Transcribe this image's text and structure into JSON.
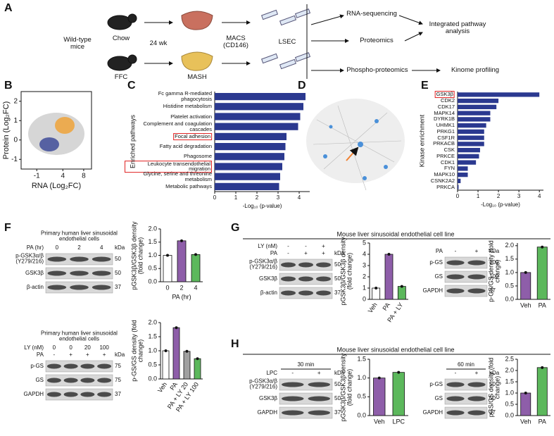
{
  "figure": {
    "panel_letters": [
      "A",
      "B",
      "C",
      "D",
      "E",
      "F",
      "G",
      "H"
    ],
    "schematic": {
      "mice": "Wild-type mice",
      "diet_1": "Chow",
      "diet_2": "FFC",
      "duration": "24 wk",
      "disease": "MASH",
      "isolation": "MACS (CD146)",
      "cells": "LSEC",
      "omics": [
        "RNA-sequencing",
        "Proteomics",
        "Phospho-proteomics"
      ],
      "outputs": [
        "Integrated pathway analysis",
        "Kinome profiling"
      ]
    },
    "headers": [
      "Mouse liver sinusoidal endothelial cell line",
      "Mouse liver sinusoidal endothelial cell line"
    ],
    "blots": [
      {
        "title": "Primary human liver sinusoidal endothelial cells",
        "conditions": [
          {
            "label": "PA (hr)",
            "values": [
              "0",
              "2",
              "4"
            ]
          }
        ],
        "kda": "kDa",
        "rows": [
          {
            "label": "p-GSK3α/β (Y279/216)",
            "kda": 50
          },
          {
            "label": "GSK3β",
            "kda": 50
          },
          {
            "label": "β-actin",
            "kda": 37
          }
        ]
      },
      {
        "title": "Primary human liver sinusoidal endothelial cells",
        "conditions": [
          {
            "label": "LY (nM)",
            "values": [
              "0",
              "0",
              "20",
              "100"
            ]
          },
          {
            "label": "PA",
            "values": [
              "-",
              "+",
              "+",
              "+"
            ]
          }
        ],
        "kda": "kDa",
        "rows": [
          {
            "label": "p-GS",
            "kda": 75
          },
          {
            "label": "GS",
            "kda": 75
          },
          {
            "label": "GAPDH",
            "kda": 37
          }
        ]
      },
      {
        "conditions": [
          {
            "label": "LY (nM)",
            "values": [
              "-",
              "-",
              "+"
            ]
          },
          {
            "label": "PA",
            "values": [
              "-",
              "+",
              "+"
            ]
          }
        ],
        "kda": "kDa",
        "rows": [
          {
            "label": "p-GSK3α/β (Y279/216)",
            "kda": 50
          },
          {
            "label": "GSK3β",
            "kda": 50
          },
          {
            "label": "β-actin",
            "kda": 37
          }
        ]
      },
      {
        "conditions": [
          {
            "label": "PA",
            "values": [
              "-",
              "+"
            ]
          }
        ],
        "kda": "kDa",
        "rows": [
          {
            "label": "p-GS",
            "kda": 100
          },
          {
            "label": "GS",
            "kda": 100
          },
          {
            "label": "GAPDH",
            "kda": 37
          }
        ]
      },
      {
        "time": "30 min",
        "conditions": [
          {
            "label": "LPC",
            "values": [
              "-",
              "+"
            ]
          }
        ],
        "kda": "kDa",
        "rows": [
          {
            "label": "p-GSK3α/β (Y279/216)",
            "kda": 50
          },
          {
            "label": "GSK3β",
            "kda": 50
          },
          {
            "label": "GAPDH",
            "kda": 37
          }
        ]
      },
      {
        "time": "60 min",
        "conditions": [
          {
            "values": [
              "-",
              "+"
            ]
          }
        ],
        "kda": "kDa",
        "rows": [
          {
            "label": "p-GS",
            "kda": 50
          },
          {
            "label": "GS",
            "kda": 50
          },
          {
            "label": "GAPDH",
            "kda": 37
          }
        ]
      }
    ]
  },
  "chart_data": [
    {
      "type": "scatter",
      "x_label": "RNA (Log₂FC)",
      "y_label": "Protein (Log₂FC)",
      "xlim": [
        -4,
        9.5
      ],
      "ylim": [
        -1.5,
        2.5
      ],
      "xticks": [
        -1,
        4,
        8
      ],
      "yticks": [
        -1,
        0,
        1,
        2
      ]
    },
    {
      "type": "hbar",
      "categories": [
        "Fc gamma R-mediated phagocytosis",
        "Histidine metabolism",
        "Platelet activation",
        "Complement and coagulation cascades",
        "Focal adhesion",
        "Fatty acid degradation",
        "Phagosome",
        "Leukocyte transendothelial migration",
        "Glycine, serine and threonine metabolism",
        "Metabolic pathways"
      ],
      "values": [
        4.3,
        4.2,
        4.05,
        3.95,
        3.4,
        3.35,
        3.3,
        3.2,
        3.1,
        3.05
      ],
      "color": "#2b3990",
      "boxed": [
        false,
        false,
        false,
        false,
        true,
        false,
        false,
        true,
        false,
        false
      ],
      "x_label": "-Log₁₀ (p-value)",
      "y_label": "Enriched pathways",
      "xlim": [
        0,
        4.5
      ],
      "xticks": [
        0,
        1,
        2,
        3,
        4
      ]
    },
    {
      "type": "hbar",
      "categories": [
        "GSK3β",
        "CDK2",
        "CDK17",
        "MAPK14",
        "DYRK1B",
        "UHMK1",
        "PRKG1",
        "CSF1R",
        "PRKACB",
        "CSK",
        "PRKCE",
        "CDK1",
        "FYN",
        "MAPK10",
        "CSNK2A2",
        "PRKCA"
      ],
      "values": [
        4.0,
        2.0,
        1.9,
        1.6,
        1.6,
        1.4,
        1.3,
        1.3,
        1.3,
        1.1,
        1.05,
        0.9,
        0.5,
        0.5,
        0.15,
        0.05
      ],
      "color": "#2b3990",
      "boxed": [
        true,
        false,
        false,
        false,
        false,
        false,
        false,
        false,
        false,
        false,
        false,
        false,
        false,
        false,
        false,
        false
      ],
      "x_label": "-Log₁₀ (p-value)",
      "y_label": "Kinase enrichment",
      "xlim": [
        0,
        4.2
      ],
      "xticks": [
        0,
        1,
        2,
        3,
        4
      ]
    },
    {
      "type": "bar",
      "categories": [
        "0",
        "2",
        "4"
      ],
      "values": [
        1,
        1.55,
        1.03
      ],
      "colors": [
        "#ffffff",
        "#8e5ea9",
        "#5cb85c"
      ],
      "rotate_labels": false,
      "x_label": "PA (hr)",
      "y_label": "pGSK3β/GSK3β density (fold change)",
      "ylim": [
        0,
        2
      ],
      "yticks": [
        {
          "value": 0,
          "label": "0.0"
        },
        0.5,
        {
          "value": 1,
          "label": "1.0"
        },
        1.5,
        {
          "value": 2,
          "label": "2.0"
        }
      ]
    },
    {
      "type": "bar",
      "categories": [
        "Veh",
        "PA",
        "PA + LY 20",
        "PA + LY 100"
      ],
      "values": [
        1,
        1.82,
        0.98,
        0.72
      ],
      "colors": [
        "#ffffff",
        "#8e5ea9",
        "#a0a0a0",
        "#5cb85c"
      ],
      "rotate_labels": true,
      "y_label": "p-GS/GS density (fold change)",
      "ylim": [
        0,
        2
      ],
      "yticks": [
        {
          "value": 0,
          "label": "0.0"
        },
        0.5,
        {
          "value": 1,
          "label": "1.0"
        },
        1.5,
        {
          "value": 2,
          "label": "2.0"
        }
      ]
    },
    {
      "type": "bar",
      "categories": [
        "Veh",
        "PA",
        "PA + LY"
      ],
      "values": [
        1,
        4,
        1.15
      ],
      "colors": [
        "#ffffff",
        "#8e5ea9",
        "#5cb85c"
      ],
      "rotate_labels": true,
      "y_label": "pGSK3β/GSK3β density (fold change)",
      "ylim": [
        0,
        5
      ],
      "yticks": [
        0,
        1,
        2,
        3,
        4,
        5
      ]
    },
    {
      "type": "bar",
      "categories": [
        "Veh",
        "PA"
      ],
      "values": [
        1,
        1.95
      ],
      "colors": [
        "#8e5ea9",
        "#5cb85c"
      ],
      "rotate_labels": false,
      "y_label": "p-GS/GS density (fold change)",
      "ylim": [
        0,
        2.1
      ],
      "yticks": [
        {
          "value": 0,
          "label": "0.0"
        },
        0.5,
        {
          "value": 1,
          "label": "1.0"
        },
        1.5,
        {
          "value": 2,
          "label": "2.0"
        }
      ]
    },
    {
      "type": "bar",
      "categories": [
        "Veh",
        "LPC"
      ],
      "values": [
        1,
        1.15
      ],
      "colors": [
        "#8e5ea9",
        "#5cb85c"
      ],
      "rotate_labels": false,
      "y_label": "pGSK3β/GSK3β density (fold change)",
      "ylim": [
        0,
        1.5
      ],
      "yticks": [
        {
          "value": 0,
          "label": "0.0"
        },
        0.5,
        {
          "value": 1,
          "label": "1.0"
        },
        1.5
      ]
    },
    {
      "type": "bar",
      "categories": [
        "Veh",
        "PA"
      ],
      "values": [
        1,
        2.13
      ],
      "colors": [
        "#8e5ea9",
        "#5cb85c"
      ],
      "rotate_labels": false,
      "y_label": "pGS/GS density (fold change)",
      "ylim": [
        0,
        2.5
      ],
      "yticks": [
        {
          "value": 0,
          "label": "0.0"
        },
        0.5,
        {
          "value": 1,
          "label": "1.0"
        },
        1.5,
        {
          "value": 2,
          "label": "2.0"
        },
        2.5
      ]
    }
  ]
}
